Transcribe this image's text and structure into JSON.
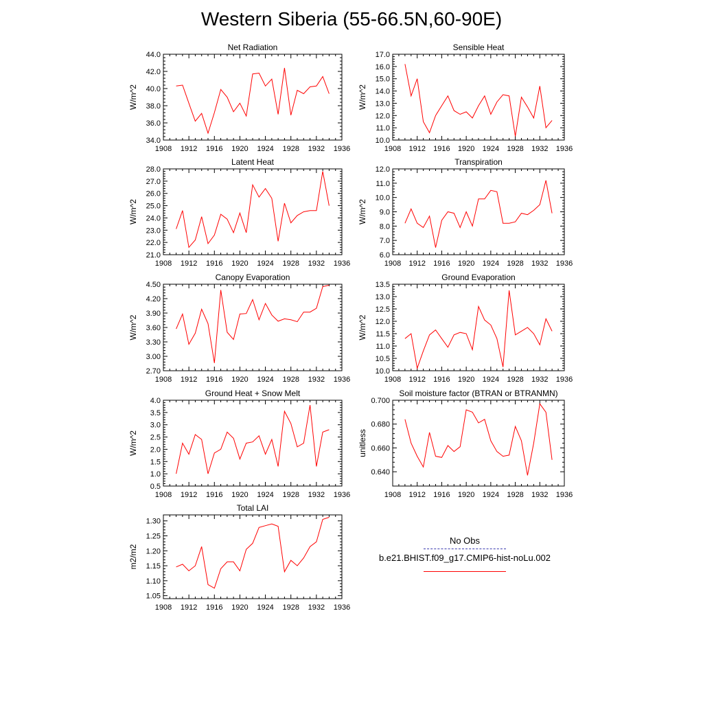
{
  "figure": {
    "title": "Western Siberia (55-66.5N,60-90E)"
  },
  "legend": {
    "obs_label": "No Obs",
    "model_label": "b.e21.BHIST.f09_g17.CMIP6-hist-noLu.002",
    "obs_color": "#3b3bb0",
    "model_color": "#ff0000"
  },
  "chart_data": [
    {
      "type": "line",
      "title": "Net Radiation",
      "ylabel": "W/m^2",
      "xlabel": "",
      "xlim": [
        1908,
        1936
      ],
      "xticks": [
        1908,
        1912,
        1916,
        1920,
        1924,
        1928,
        1932,
        1936
      ],
      "ylim": [
        34.0,
        44.0
      ],
      "yticks": [
        "34.0",
        "36.0",
        "38.0",
        "40.0",
        "42.0",
        "44.0"
      ],
      "x": [
        1910,
        1911,
        1912,
        1913,
        1914,
        1915,
        1916,
        1917,
        1918,
        1919,
        1920,
        1921,
        1922,
        1923,
        1924,
        1925,
        1926,
        1927,
        1928,
        1929,
        1930,
        1931,
        1932,
        1933,
        1934
      ],
      "series": [
        {
          "name": "b.e21.BHIST.f09_g17.CMIP6-hist-noLu.002",
          "color": "#ff0000",
          "values": [
            40.3,
            40.4,
            38.3,
            36.2,
            37.1,
            34.8,
            37.2,
            39.9,
            39.0,
            37.3,
            38.3,
            36.8,
            41.7,
            41.8,
            40.3,
            41.1,
            37.0,
            42.4,
            36.9,
            39.8,
            39.4,
            40.2,
            40.3,
            41.4,
            39.4
          ]
        }
      ]
    },
    {
      "type": "line",
      "title": "Sensible Heat",
      "ylabel": "W/m^2",
      "xlabel": "",
      "xlim": [
        1908,
        1936
      ],
      "xticks": [
        1908,
        1912,
        1916,
        1920,
        1924,
        1928,
        1932,
        1936
      ],
      "ylim": [
        10.0,
        17.0
      ],
      "yticks": [
        "10.0",
        "11.0",
        "12.0",
        "13.0",
        "14.0",
        "15.0",
        "16.0",
        "17.0"
      ],
      "x": [
        1910,
        1911,
        1912,
        1913,
        1914,
        1915,
        1916,
        1917,
        1918,
        1919,
        1920,
        1921,
        1922,
        1923,
        1924,
        1925,
        1926,
        1927,
        1928,
        1929,
        1930,
        1931,
        1932,
        1933,
        1934
      ],
      "series": [
        {
          "name": "b.e21.BHIST.f09_g17.CMIP6-hist-noLu.002",
          "color": "#ff0000",
          "values": [
            16.2,
            13.6,
            15.0,
            11.5,
            10.6,
            12.0,
            12.8,
            13.6,
            12.4,
            12.1,
            12.3,
            11.8,
            12.8,
            13.6,
            12.1,
            13.1,
            13.7,
            13.6,
            10.3,
            13.5,
            12.7,
            11.8,
            14.4,
            11.0,
            11.6
          ]
        }
      ]
    },
    {
      "type": "line",
      "title": "Latent Heat",
      "ylabel": "W/m^2",
      "xlabel": "",
      "xlim": [
        1908,
        1936
      ],
      "xticks": [
        1908,
        1912,
        1916,
        1920,
        1924,
        1928,
        1932,
        1936
      ],
      "ylim": [
        21.0,
        28.0
      ],
      "yticks": [
        "21.0",
        "22.0",
        "23.0",
        "24.0",
        "25.0",
        "26.0",
        "27.0",
        "28.0"
      ],
      "x": [
        1910,
        1911,
        1912,
        1913,
        1914,
        1915,
        1916,
        1917,
        1918,
        1919,
        1920,
        1921,
        1922,
        1923,
        1924,
        1925,
        1926,
        1927,
        1928,
        1929,
        1930,
        1931,
        1932,
        1933,
        1934
      ],
      "series": [
        {
          "name": "b.e21.BHIST.f09_g17.CMIP6-hist-noLu.002",
          "color": "#ff0000",
          "values": [
            23.1,
            24.6,
            21.6,
            22.2,
            24.1,
            21.9,
            22.6,
            24.3,
            23.9,
            22.8,
            24.4,
            22.8,
            26.7,
            25.7,
            26.4,
            25.6,
            22.1,
            25.2,
            23.6,
            24.2,
            24.5,
            24.6,
            24.6,
            27.8,
            25.0
          ]
        }
      ]
    },
    {
      "type": "line",
      "title": "Transpiration",
      "ylabel": "W/m^2",
      "xlabel": "",
      "xlim": [
        1908,
        1936
      ],
      "xticks": [
        1908,
        1912,
        1916,
        1920,
        1924,
        1928,
        1932,
        1936
      ],
      "ylim": [
        6.0,
        12.0
      ],
      "yticks": [
        "6.0",
        "7.0",
        "8.0",
        "9.0",
        "10.0",
        "11.0",
        "12.0"
      ],
      "x": [
        1910,
        1911,
        1912,
        1913,
        1914,
        1915,
        1916,
        1917,
        1918,
        1919,
        1920,
        1921,
        1922,
        1923,
        1924,
        1925,
        1926,
        1927,
        1928,
        1929,
        1930,
        1931,
        1932,
        1933,
        1934
      ],
      "series": [
        {
          "name": "b.e21.BHIST.f09_g17.CMIP6-hist-noLu.002",
          "color": "#ff0000",
          "values": [
            8.2,
            9.2,
            8.2,
            7.9,
            8.7,
            6.5,
            8.4,
            9.0,
            8.9,
            7.9,
            9.0,
            8.0,
            9.9,
            9.9,
            10.5,
            10.4,
            8.2,
            8.2,
            8.3,
            8.9,
            8.8,
            9.1,
            9.5,
            11.2,
            8.9
          ]
        }
      ]
    },
    {
      "type": "line",
      "title": "Canopy Evaporation",
      "ylabel": "W/m^2",
      "xlabel": "",
      "xlim": [
        1908,
        1936
      ],
      "xticks": [
        1908,
        1912,
        1916,
        1920,
        1924,
        1928,
        1932,
        1936
      ],
      "ylim": [
        2.7,
        4.5
      ],
      "yticks": [
        "2.70",
        "3.00",
        "3.30",
        "3.60",
        "3.90",
        "4.20",
        "4.50"
      ],
      "x": [
        1910,
        1911,
        1912,
        1913,
        1914,
        1915,
        1916,
        1917,
        1918,
        1919,
        1920,
        1921,
        1922,
        1923,
        1924,
        1925,
        1926,
        1927,
        1928,
        1929,
        1930,
        1931,
        1932,
        1933,
        1934
      ],
      "series": [
        {
          "name": "b.e21.BHIST.f09_g17.CMIP6-hist-noLu.002",
          "color": "#ff0000",
          "values": [
            3.57,
            3.88,
            3.25,
            3.48,
            3.98,
            3.68,
            2.86,
            4.38,
            3.5,
            3.35,
            3.88,
            3.89,
            4.18,
            3.76,
            4.1,
            3.86,
            3.73,
            3.78,
            3.76,
            3.72,
            3.92,
            3.92,
            4.0,
            4.45,
            4.48
          ]
        }
      ]
    },
    {
      "type": "line",
      "title": "Ground Evaporation",
      "ylabel": "W/m^2",
      "xlabel": "",
      "xlim": [
        1908,
        1936
      ],
      "xticks": [
        1908,
        1912,
        1916,
        1920,
        1924,
        1928,
        1932,
        1936
      ],
      "ylim": [
        10.0,
        13.5
      ],
      "yticks": [
        "10.0",
        "10.5",
        "11.0",
        "11.5",
        "12.0",
        "12.5",
        "13.0",
        "13.5"
      ],
      "x": [
        1910,
        1911,
        1912,
        1913,
        1914,
        1915,
        1916,
        1917,
        1918,
        1919,
        1920,
        1921,
        1922,
        1923,
        1924,
        1925,
        1926,
        1927,
        1928,
        1929,
        1930,
        1931,
        1932,
        1933,
        1934
      ],
      "series": [
        {
          "name": "b.e21.BHIST.f09_g17.CMIP6-hist-noLu.002",
          "color": "#ff0000",
          "values": [
            11.3,
            11.5,
            10.1,
            10.8,
            11.45,
            11.65,
            11.3,
            10.95,
            11.45,
            11.55,
            11.5,
            10.85,
            12.6,
            12.05,
            11.85,
            11.3,
            10.15,
            13.25,
            11.45,
            11.6,
            11.75,
            11.5,
            11.05,
            12.1,
            11.6
          ]
        }
      ]
    },
    {
      "type": "line",
      "title": "Ground Heat + Snow Melt",
      "ylabel": "W/m^2",
      "xlabel": "",
      "xlim": [
        1908,
        1936
      ],
      "xticks": [
        1908,
        1912,
        1916,
        1920,
        1924,
        1928,
        1932,
        1936
      ],
      "ylim": [
        0.5,
        4.0
      ],
      "yticks": [
        "0.5",
        "1.0",
        "1.5",
        "2.0",
        "2.5",
        "3.0",
        "3.5",
        "4.0"
      ],
      "x": [
        1910,
        1911,
        1912,
        1913,
        1914,
        1915,
        1916,
        1917,
        1918,
        1919,
        1920,
        1921,
        1922,
        1923,
        1924,
        1925,
        1926,
        1927,
        1928,
        1929,
        1930,
        1931,
        1932,
        1933,
        1934
      ],
      "series": [
        {
          "name": "b.e21.BHIST.f09_g17.CMIP6-hist-noLu.002",
          "color": "#ff0000",
          "values": [
            1.0,
            2.25,
            1.8,
            2.6,
            2.4,
            1.0,
            1.85,
            2.0,
            2.7,
            2.45,
            1.6,
            2.25,
            2.3,
            2.55,
            1.8,
            2.4,
            1.3,
            3.55,
            3.05,
            2.1,
            2.25,
            3.8,
            1.3,
            2.7,
            2.8
          ]
        }
      ]
    },
    {
      "type": "line",
      "title": "Soil moisture factor (BTRAN or BTRANMN)",
      "ylabel": "unitless",
      "xlabel": "",
      "xlim": [
        1908,
        1936
      ],
      "xticks": [
        1908,
        1912,
        1916,
        1920,
        1924,
        1928,
        1932,
        1936
      ],
      "ylim": [
        0.628,
        0.7
      ],
      "yticks": [
        "0.640",
        "0.660",
        "0.680",
        "0.700"
      ],
      "x": [
        1910,
        1911,
        1912,
        1913,
        1914,
        1915,
        1916,
        1917,
        1918,
        1919,
        1920,
        1921,
        1922,
        1923,
        1924,
        1925,
        1926,
        1927,
        1928,
        1929,
        1930,
        1931,
        1932,
        1933,
        1934
      ],
      "series": [
        {
          "name": "b.e21.BHIST.f09_g17.CMIP6-hist-noLu.002",
          "color": "#ff0000",
          "values": [
            0.684,
            0.664,
            0.653,
            0.644,
            0.673,
            0.653,
            0.652,
            0.662,
            0.657,
            0.661,
            0.692,
            0.69,
            0.681,
            0.684,
            0.666,
            0.657,
            0.653,
            0.654,
            0.678,
            0.666,
            0.637,
            0.664,
            0.697,
            0.69,
            0.65
          ]
        }
      ]
    },
    {
      "type": "line",
      "title": "Total LAI",
      "ylabel": "m2/m2",
      "xlabel": "",
      "xlim": [
        1908,
        1936
      ],
      "xticks": [
        1908,
        1912,
        1916,
        1920,
        1924,
        1928,
        1932,
        1936
      ],
      "ylim": [
        1.04,
        1.32
      ],
      "yticks": [
        "1.05",
        "1.10",
        "1.15",
        "1.20",
        "1.25",
        "1.30"
      ],
      "x": [
        1910,
        1911,
        1912,
        1913,
        1914,
        1915,
        1916,
        1917,
        1918,
        1919,
        1920,
        1921,
        1922,
        1923,
        1924,
        1925,
        1926,
        1927,
        1928,
        1929,
        1930,
        1931,
        1932,
        1933,
        1934
      ],
      "series": [
        {
          "name": "b.e21.BHIST.f09_g17.CMIP6-hist-noLu.002",
          "color": "#ff0000",
          "values": [
            1.146,
            1.155,
            1.133,
            1.15,
            1.214,
            1.087,
            1.075,
            1.14,
            1.163,
            1.163,
            1.133,
            1.205,
            1.225,
            1.278,
            1.284,
            1.29,
            1.282,
            1.13,
            1.168,
            1.15,
            1.176,
            1.214,
            1.23,
            1.305,
            1.312
          ]
        }
      ]
    }
  ]
}
